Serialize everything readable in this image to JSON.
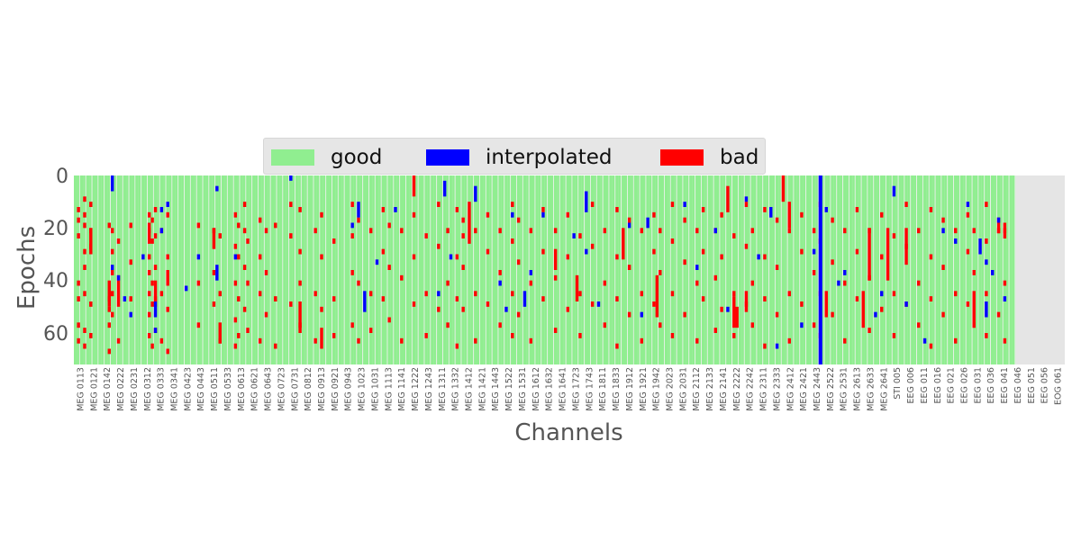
{
  "chart_data": {
    "type": "heatmap",
    "title": "",
    "xlabel": "Channels",
    "ylabel": "Epochs",
    "ylim": [
      72,
      0
    ],
    "yticks": [
      "0",
      "20",
      "40",
      "60"
    ],
    "y_tick_values": [
      0,
      20,
      40,
      60
    ],
    "n_epochs": 72,
    "n_channels": 322,
    "n_meg_channels": 306,
    "legend": {
      "placement": "top-center",
      "entries": [
        {
          "label": "good",
          "color": "#90ee90"
        },
        {
          "label": "interpolated",
          "color": "#0000ff"
        },
        {
          "label": "bad",
          "color": "#ff0000"
        }
      ]
    },
    "colors": {
      "good": "#90ee90",
      "interpolated": "#0000ff",
      "bad": "#ff0000",
      "background": "#e5e5e5",
      "column_gap": "#f0f0f0"
    },
    "x_tick_labels": [
      "MEG 0113",
      "MEG 0121",
      "MEG 0142",
      "MEG 0222",
      "MEG 0231",
      "MEG 0312",
      "MEG 0333",
      "MEG 0341",
      "MEG 0423",
      "MEG 0443",
      "MEG 0511",
      "MEG 0533",
      "MEG 0613",
      "MEG 0621",
      "MEG 0643",
      "MEG 0723",
      "MEG 0731",
      "MEG 0812",
      "MEG 0913",
      "MEG 0921",
      "MEG 0943",
      "MEG 1023",
      "MEG 1031",
      "MEG 1113",
      "MEG 1141",
      "MEG 1222",
      "MEG 1243",
      "MEG 1311",
      "MEG 1332",
      "MEG 1412",
      "MEG 1421",
      "MEG 1443",
      "MEG 1522",
      "MEG 1531",
      "MEG 1612",
      "MEG 1632",
      "MEG 1641",
      "MEG 1723",
      "MEG 1743",
      "MEG 1811",
      "MEG 1833",
      "MEG 1912",
      "MEG 1921",
      "MEG 1942",
      "MEG 2023",
      "MEG 2031",
      "MEG 2112",
      "MEG 2133",
      "MEG 2141",
      "MEG 2222",
      "MEG 2242",
      "MEG 2311",
      "MEG 2333",
      "MEG 2412",
      "MEG 2421",
      "MEG 2443",
      "MEG 2522",
      "MEG 2531",
      "MEG 2613",
      "MEG 2633",
      "MEG 2641",
      "STI 005",
      "EEG 006",
      "EEG 011",
      "EEG 016",
      "EEG 021",
      "EEG 026",
      "EEG 031",
      "EEG 036",
      "EEG 041",
      "EEG 046",
      "EEG 051",
      "EEG 056",
      "EOG 061"
    ],
    "interpolated_channel_label": "MEG 2443",
    "bad_cells": [
      [
        1,
        12
      ],
      [
        1,
        16
      ],
      [
        1,
        22
      ],
      [
        1,
        40
      ],
      [
        1,
        46
      ],
      [
        1,
        56
      ],
      [
        1,
        62
      ],
      [
        3,
        8
      ],
      [
        3,
        14
      ],
      [
        3,
        18
      ],
      [
        3,
        28
      ],
      [
        3,
        34
      ],
      [
        3,
        44
      ],
      [
        3,
        58
      ],
      [
        3,
        64
      ],
      [
        5,
        10
      ],
      [
        5,
        20
      ],
      [
        5,
        26
      ],
      [
        5,
        48
      ],
      [
        5,
        60
      ],
      [
        11,
        18
      ],
      [
        11,
        46
      ],
      [
        11,
        50
      ],
      [
        11,
        56
      ],
      [
        11,
        66
      ],
      [
        12,
        20
      ],
      [
        12,
        28
      ],
      [
        12,
        36
      ],
      [
        12,
        44
      ],
      [
        12,
        52
      ],
      [
        14,
        24
      ],
      [
        14,
        38
      ],
      [
        14,
        48
      ],
      [
        14,
        62
      ],
      [
        18,
        18
      ],
      [
        18,
        32
      ],
      [
        18,
        46
      ],
      [
        24,
        14
      ],
      [
        24,
        20
      ],
      [
        24,
        30
      ],
      [
        24,
        36
      ],
      [
        24,
        44
      ],
      [
        24,
        52
      ],
      [
        24,
        60
      ],
      [
        25,
        16
      ],
      [
        25,
        24
      ],
      [
        25,
        40
      ],
      [
        25,
        48
      ],
      [
        25,
        64
      ],
      [
        26,
        12
      ],
      [
        26,
        22
      ],
      [
        26,
        34
      ],
      [
        26,
        46
      ],
      [
        26,
        58
      ],
      [
        28,
        20
      ],
      [
        28,
        44
      ],
      [
        28,
        62
      ],
      [
        30,
        14
      ],
      [
        30,
        30
      ],
      [
        30,
        50
      ],
      [
        30,
        66
      ],
      [
        40,
        18
      ],
      [
        40,
        40
      ],
      [
        40,
        56
      ],
      [
        45,
        20
      ],
      [
        45,
        36
      ],
      [
        45,
        48
      ],
      [
        47,
        22
      ],
      [
        47,
        44
      ],
      [
        47,
        62
      ],
      [
        52,
        14
      ],
      [
        52,
        26
      ],
      [
        52,
        40
      ],
      [
        52,
        54
      ],
      [
        52,
        64
      ],
      [
        53,
        18
      ],
      [
        53,
        30
      ],
      [
        53,
        46
      ],
      [
        53,
        60
      ],
      [
        55,
        10
      ],
      [
        55,
        20
      ],
      [
        55,
        34
      ],
      [
        55,
        50
      ],
      [
        56,
        24
      ],
      [
        56,
        40
      ],
      [
        56,
        58
      ],
      [
        60,
        16
      ],
      [
        60,
        30
      ],
      [
        60,
        44
      ],
      [
        60,
        62
      ],
      [
        62,
        20
      ],
      [
        62,
        36
      ],
      [
        62,
        52
      ],
      [
        65,
        18
      ],
      [
        65,
        46
      ],
      [
        65,
        64
      ],
      [
        70,
        10
      ],
      [
        70,
        22
      ],
      [
        70,
        48
      ],
      [
        73,
        12
      ],
      [
        73,
        28
      ],
      [
        73,
        40
      ],
      [
        73,
        56
      ],
      [
        78,
        20
      ],
      [
        78,
        44
      ],
      [
        78,
        62
      ],
      [
        80,
        14
      ],
      [
        80,
        30
      ],
      [
        80,
        50
      ],
      [
        84,
        24
      ],
      [
        84,
        46
      ],
      [
        84,
        60
      ],
      [
        90,
        10
      ],
      [
        90,
        22
      ],
      [
        90,
        36
      ],
      [
        90,
        56
      ],
      [
        92,
        16
      ],
      [
        92,
        40
      ],
      [
        92,
        62
      ],
      [
        96,
        20
      ],
      [
        96,
        44
      ],
      [
        96,
        58
      ],
      [
        100,
        12
      ],
      [
        100,
        28
      ],
      [
        100,
        46
      ],
      [
        102,
        18
      ],
      [
        102,
        34
      ],
      [
        102,
        54
      ],
      [
        106,
        20
      ],
      [
        106,
        38
      ],
      [
        106,
        62
      ],
      [
        110,
        14
      ],
      [
        110,
        30
      ],
      [
        110,
        48
      ],
      [
        114,
        22
      ],
      [
        114,
        44
      ],
      [
        114,
        60
      ],
      [
        118,
        10
      ],
      [
        118,
        26
      ],
      [
        118,
        50
      ],
      [
        121,
        20
      ],
      [
        121,
        40
      ],
      [
        121,
        56
      ],
      [
        124,
        12
      ],
      [
        124,
        30
      ],
      [
        124,
        46
      ],
      [
        124,
        64
      ],
      [
        126,
        16
      ],
      [
        126,
        22
      ],
      [
        126,
        34
      ],
      [
        126,
        50
      ],
      [
        130,
        20
      ],
      [
        130,
        44
      ],
      [
        130,
        62
      ],
      [
        134,
        14
      ],
      [
        134,
        28
      ],
      [
        134,
        48
      ],
      [
        138,
        20
      ],
      [
        138,
        36
      ],
      [
        138,
        56
      ],
      [
        142,
        10
      ],
      [
        142,
        24
      ],
      [
        142,
        44
      ],
      [
        142,
        60
      ],
      [
        144,
        16
      ],
      [
        144,
        32
      ],
      [
        144,
        52
      ],
      [
        148,
        20
      ],
      [
        148,
        40
      ],
      [
        148,
        62
      ],
      [
        152,
        12
      ],
      [
        152,
        28
      ],
      [
        152,
        46
      ],
      [
        156,
        20
      ],
      [
        156,
        38
      ],
      [
        156,
        58
      ],
      [
        160,
        14
      ],
      [
        160,
        30
      ],
      [
        160,
        50
      ],
      [
        164,
        22
      ],
      [
        164,
        44
      ],
      [
        164,
        60
      ],
      [
        168,
        10
      ],
      [
        168,
        26
      ],
      [
        168,
        48
      ],
      [
        172,
        20
      ],
      [
        172,
        40
      ],
      [
        172,
        56
      ],
      [
        176,
        12
      ],
      [
        176,
        30
      ],
      [
        176,
        46
      ],
      [
        176,
        64
      ],
      [
        180,
        16
      ],
      [
        180,
        34
      ],
      [
        180,
        52
      ],
      [
        184,
        20
      ],
      [
        184,
        44
      ],
      [
        184,
        62
      ],
      [
        188,
        14
      ],
      [
        188,
        28
      ],
      [
        188,
        48
      ],
      [
        190,
        20
      ],
      [
        190,
        36
      ],
      [
        190,
        56
      ],
      [
        194,
        10
      ],
      [
        194,
        24
      ],
      [
        194,
        44
      ],
      [
        194,
        60
      ],
      [
        198,
        16
      ],
      [
        198,
        32
      ],
      [
        198,
        52
      ],
      [
        202,
        20
      ],
      [
        202,
        40
      ],
      [
        202,
        62
      ],
      [
        204,
        12
      ],
      [
        204,
        28
      ],
      [
        204,
        46
      ],
      [
        208,
        20
      ],
      [
        208,
        38
      ],
      [
        208,
        58
      ],
      [
        210,
        14
      ],
      [
        210,
        30
      ],
      [
        210,
        50
      ],
      [
        214,
        22
      ],
      [
        214,
        44
      ],
      [
        214,
        60
      ],
      [
        218,
        10
      ],
      [
        218,
        26
      ],
      [
        218,
        48
      ],
      [
        220,
        20
      ],
      [
        220,
        40
      ],
      [
        220,
        56
      ],
      [
        224,
        12
      ],
      [
        224,
        30
      ],
      [
        224,
        46
      ],
      [
        224,
        64
      ],
      [
        228,
        16
      ],
      [
        228,
        34
      ],
      [
        228,
        52
      ],
      [
        232,
        20
      ],
      [
        232,
        44
      ],
      [
        232,
        62
      ],
      [
        236,
        14
      ],
      [
        236,
        28
      ],
      [
        236,
        48
      ],
      [
        240,
        20
      ],
      [
        240,
        36
      ],
      [
        240,
        56
      ],
      [
        242,
        10
      ],
      [
        242,
        24
      ],
      [
        242,
        44
      ],
      [
        242,
        60
      ],
      [
        246,
        16
      ],
      [
        246,
        32
      ],
      [
        246,
        52
      ],
      [
        250,
        20
      ],
      [
        250,
        40
      ],
      [
        250,
        62
      ],
      [
        254,
        12
      ],
      [
        254,
        28
      ],
      [
        254,
        46
      ],
      [
        258,
        20
      ],
      [
        258,
        38
      ],
      [
        258,
        58
      ],
      [
        262,
        14
      ],
      [
        262,
        30
      ],
      [
        262,
        50
      ],
      [
        266,
        22
      ],
      [
        266,
        44
      ],
      [
        266,
        60
      ],
      [
        270,
        10
      ],
      [
        270,
        26
      ],
      [
        270,
        48
      ],
      [
        274,
        20
      ],
      [
        274,
        40
      ],
      [
        274,
        56
      ],
      [
        278,
        12
      ],
      [
        278,
        30
      ],
      [
        278,
        46
      ],
      [
        278,
        64
      ],
      [
        282,
        16
      ],
      [
        282,
        34
      ],
      [
        282,
        52
      ],
      [
        286,
        20
      ],
      [
        286,
        44
      ],
      [
        286,
        62
      ],
      [
        290,
        14
      ],
      [
        290,
        28
      ],
      [
        290,
        48
      ],
      [
        292,
        20
      ],
      [
        292,
        36
      ],
      [
        292,
        56
      ],
      [
        296,
        10
      ],
      [
        296,
        24
      ],
      [
        296,
        44
      ],
      [
        296,
        60
      ],
      [
        300,
        16
      ],
      [
        300,
        20
      ],
      [
        300,
        52
      ],
      [
        302,
        20
      ],
      [
        302,
        40
      ],
      [
        302,
        62
      ]
    ],
    "bad_runs": [
      [
        5,
        20,
        30
      ],
      [
        11,
        40,
        50
      ],
      [
        14,
        40,
        48
      ],
      [
        24,
        18,
        26
      ],
      [
        26,
        40,
        50
      ],
      [
        30,
        36,
        42
      ],
      [
        45,
        20,
        28
      ],
      [
        47,
        56,
        64
      ],
      [
        73,
        48,
        60
      ],
      [
        80,
        58,
        66
      ],
      [
        110,
        0,
        8
      ],
      [
        128,
        10,
        26
      ],
      [
        156,
        28,
        36
      ],
      [
        163,
        38,
        48
      ],
      [
        178,
        20,
        32
      ],
      [
        189,
        38,
        54
      ],
      [
        212,
        4,
        14
      ],
      [
        214,
        46,
        58
      ],
      [
        215,
        50,
        58
      ],
      [
        218,
        44,
        52
      ],
      [
        230,
        0,
        10
      ],
      [
        232,
        10,
        20
      ],
      [
        244,
        44,
        54
      ],
      [
        256,
        44,
        58
      ],
      [
        258,
        20,
        40
      ],
      [
        264,
        20,
        40
      ],
      [
        270,
        20,
        34
      ],
      [
        292,
        44,
        58
      ],
      [
        300,
        18,
        22
      ],
      [
        302,
        18,
        24
      ]
    ],
    "interp_cells": [
      [
        12,
        34
      ],
      [
        14,
        38
      ],
      [
        16,
        46
      ],
      [
        18,
        52
      ],
      [
        22,
        30
      ],
      [
        26,
        58
      ],
      [
        28,
        20
      ],
      [
        28,
        12
      ],
      [
        30,
        10
      ],
      [
        36,
        42
      ],
      [
        40,
        30
      ],
      [
        46,
        4
      ],
      [
        52,
        30
      ],
      [
        70,
        0
      ],
      [
        90,
        18
      ],
      [
        98,
        32
      ],
      [
        104,
        12
      ],
      [
        118,
        44
      ],
      [
        122,
        30
      ],
      [
        138,
        40
      ],
      [
        140,
        50
      ],
      [
        142,
        14
      ],
      [
        148,
        36
      ],
      [
        152,
        14
      ],
      [
        162,
        22
      ],
      [
        166,
        28
      ],
      [
        170,
        48
      ],
      [
        180,
        18
      ],
      [
        184,
        52
      ],
      [
        198,
        10
      ],
      [
        202,
        34
      ],
      [
        208,
        20
      ],
      [
        212,
        50
      ],
      [
        218,
        8
      ],
      [
        222,
        30
      ],
      [
        228,
        64
      ],
      [
        236,
        56
      ],
      [
        240,
        28
      ],
      [
        244,
        12
      ],
      [
        248,
        40
      ],
      [
        250,
        36
      ],
      [
        260,
        52
      ],
      [
        262,
        44
      ],
      [
        270,
        48
      ],
      [
        276,
        62
      ],
      [
        282,
        20
      ],
      [
        286,
        24
      ],
      [
        290,
        10
      ],
      [
        296,
        32
      ],
      [
        298,
        36
      ],
      [
        300,
        16
      ],
      [
        302,
        46
      ]
    ],
    "interp_runs": [
      [
        12,
        0,
        6
      ],
      [
        26,
        48,
        54
      ],
      [
        46,
        34,
        40
      ],
      [
        92,
        10,
        16
      ],
      [
        94,
        44,
        52
      ],
      [
        120,
        2,
        8
      ],
      [
        130,
        4,
        10
      ],
      [
        146,
        44,
        50
      ],
      [
        166,
        6,
        14
      ],
      [
        186,
        16,
        20
      ],
      [
        226,
        12,
        16
      ],
      [
        266,
        4,
        8
      ],
      [
        294,
        24,
        30
      ],
      [
        296,
        48,
        54
      ]
    ]
  }
}
